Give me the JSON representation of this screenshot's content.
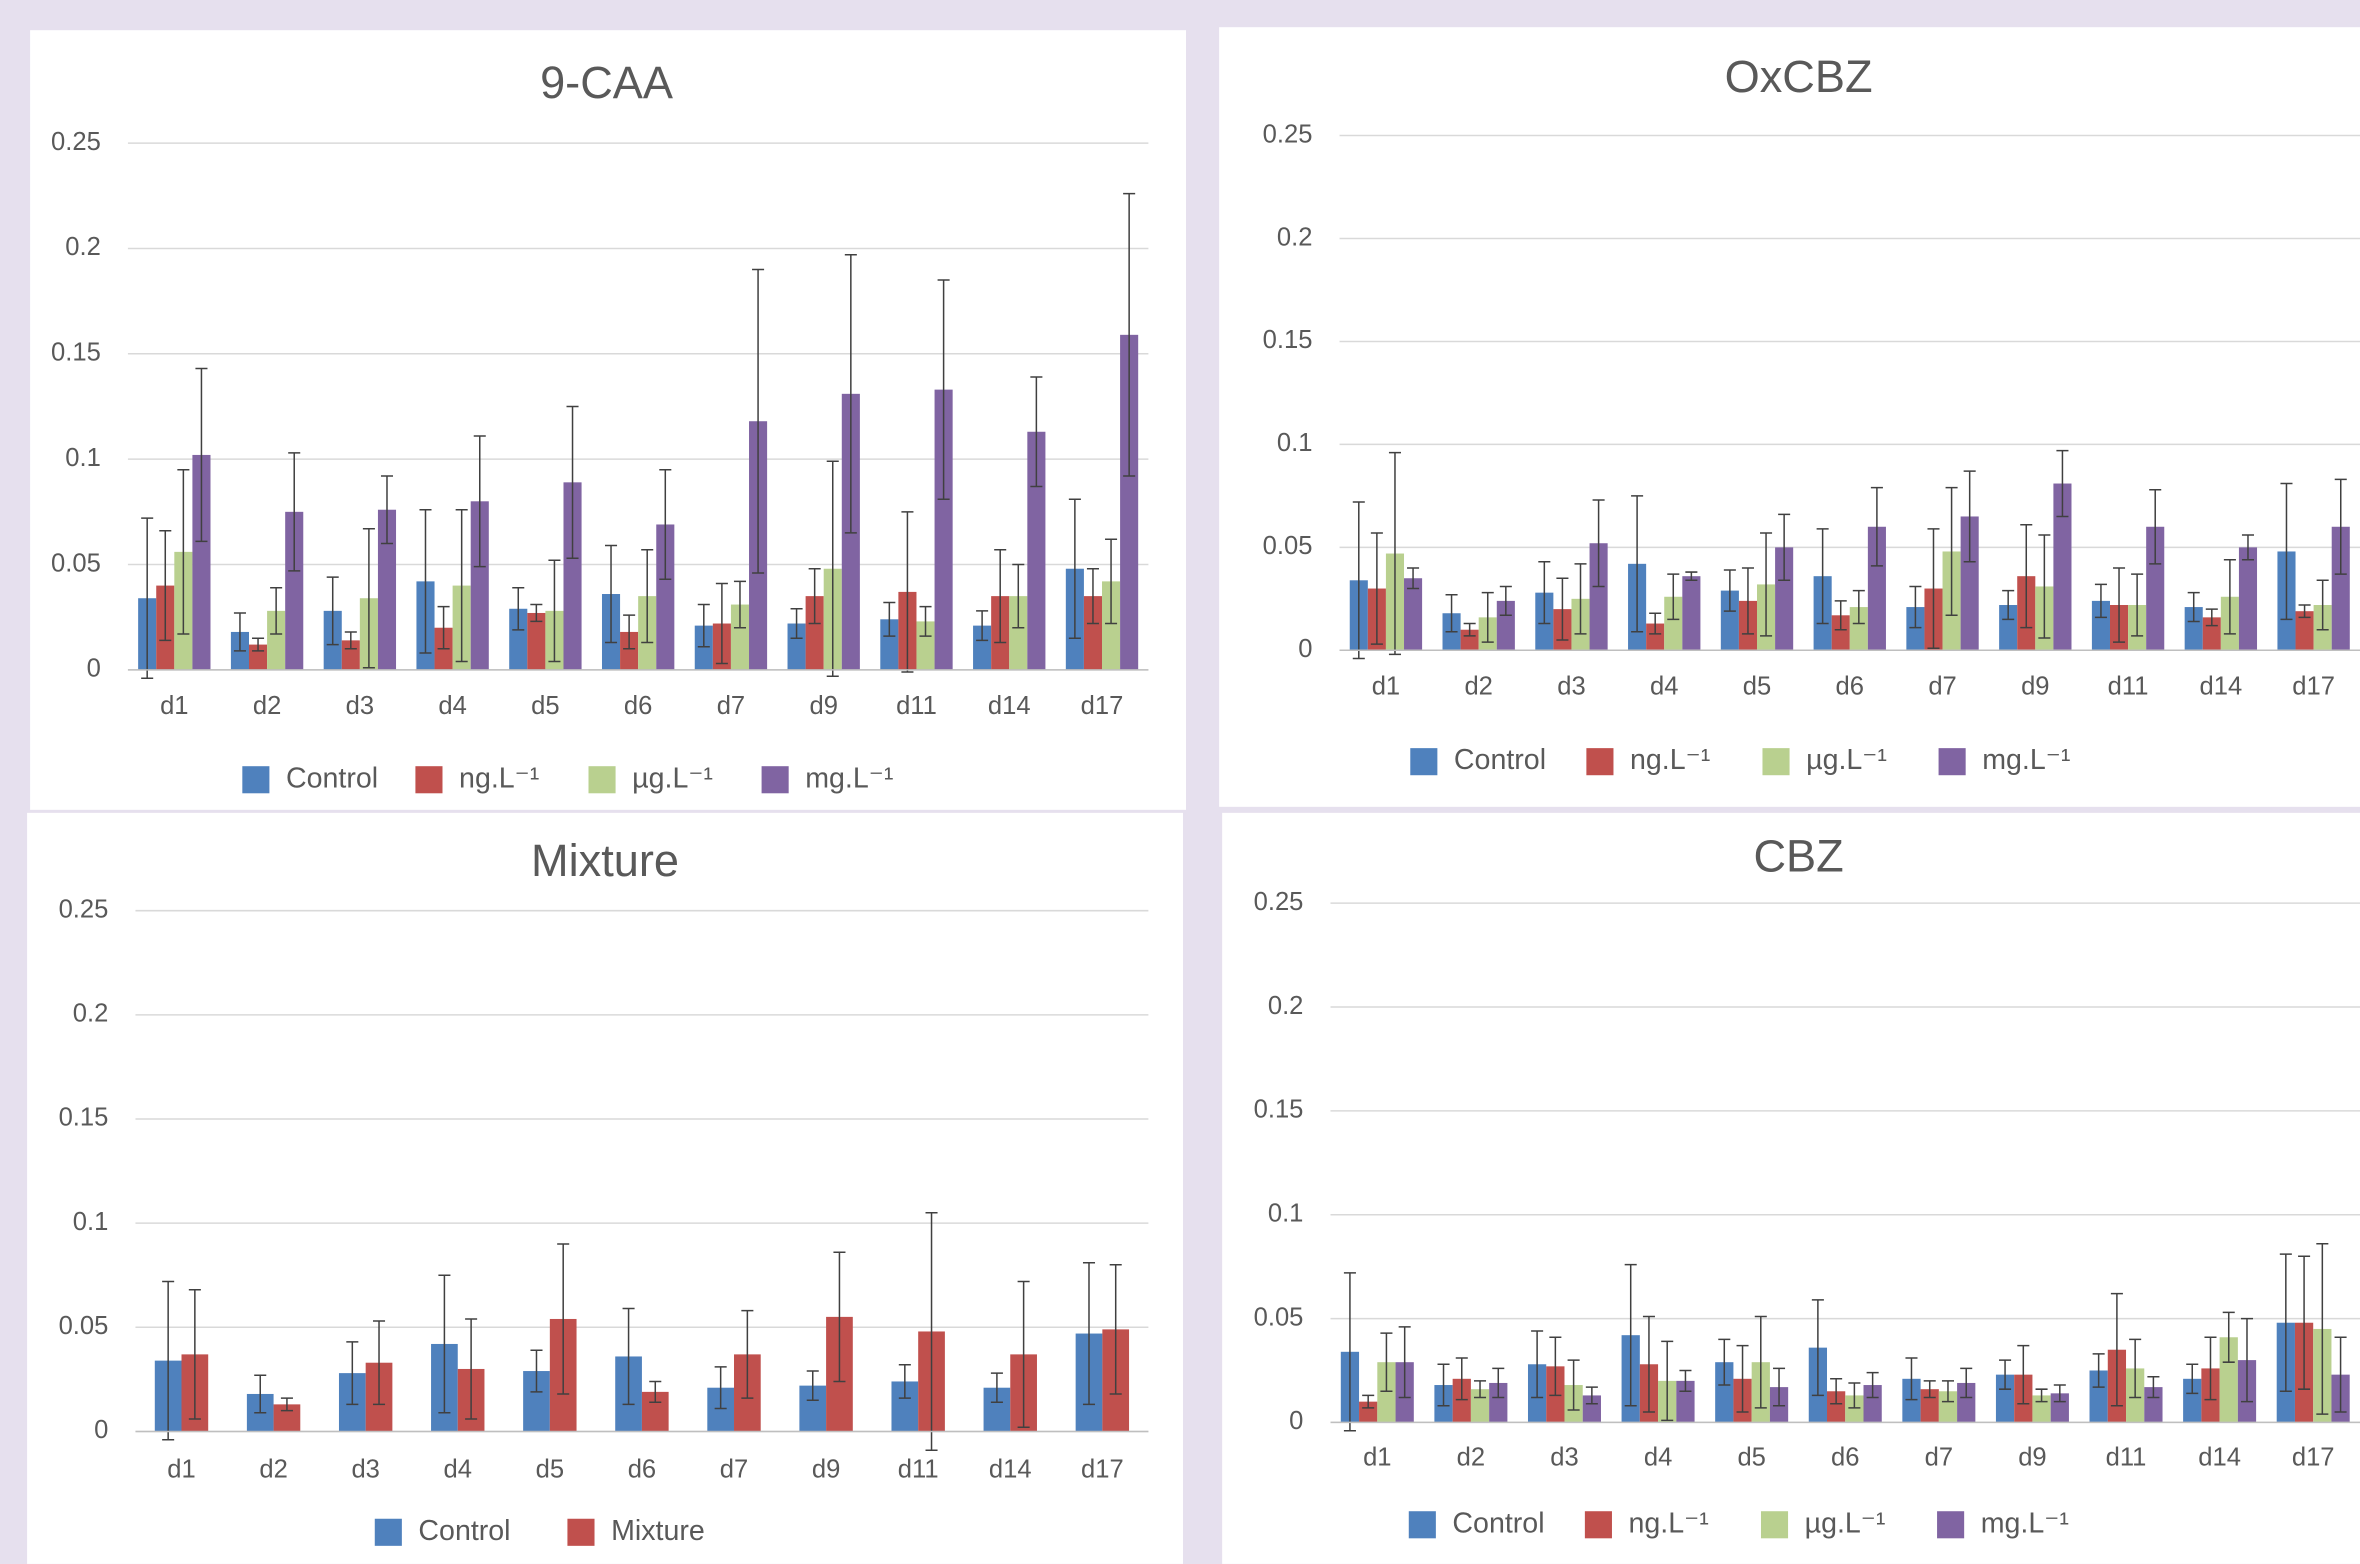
{
  "chart_data": [
    {
      "type": "bar",
      "title": "9-CAA",
      "categories": [
        "d1",
        "d2",
        "d3",
        "d4",
        "d5",
        "d6",
        "d7",
        "d9",
        "d11",
        "d14",
        "d17"
      ],
      "ylim": [
        0,
        0.25
      ],
      "yticks": [
        0,
        0.05,
        0.1,
        0.15,
        0.2,
        0.25
      ],
      "grid": true,
      "series": [
        {
          "name": "Control",
          "color": "#4f81bd",
          "values": [
            0.034,
            0.018,
            0.028,
            0.042,
            0.029,
            0.036,
            0.021,
            0.022,
            0.024,
            0.021,
            0.048
          ],
          "errors": [
            0.038,
            0.009,
            0.016,
            0.034,
            0.01,
            0.023,
            0.01,
            0.007,
            0.008,
            0.007,
            0.033
          ]
        },
        {
          "name": "ng.L⁻¹",
          "color": "#c0504d",
          "values": [
            0.04,
            0.012,
            0.014,
            0.02,
            0.027,
            0.018,
            0.022,
            0.035,
            0.037,
            0.035,
            0.035
          ],
          "errors": [
            0.026,
            0.003,
            0.004,
            0.01,
            0.004,
            0.008,
            0.019,
            0.013,
            0.038,
            0.022,
            0.013
          ]
        },
        {
          "name": "µg.L⁻¹",
          "color": "#b9d08f",
          "values": [
            0.056,
            0.028,
            0.034,
            0.04,
            0.028,
            0.035,
            0.031,
            0.048,
            0.023,
            0.035,
            0.042
          ],
          "errors": [
            0.039,
            0.011,
            0.033,
            0.036,
            0.024,
            0.022,
            0.011,
            0.051,
            0.007,
            0.015,
            0.02
          ]
        },
        {
          "name": "mg.L⁻¹",
          "color": "#8064a2",
          "values": [
            0.102,
            0.075,
            0.076,
            0.08,
            0.089,
            0.069,
            0.118,
            0.131,
            0.133,
            0.113,
            0.159
          ],
          "errors": [
            0.041,
            0.028,
            0.016,
            0.031,
            0.036,
            0.026,
            0.072,
            0.066,
            0.052,
            0.026,
            0.067
          ]
        }
      ]
    },
    {
      "type": "bar",
      "title": "OxCBZ",
      "categories": [
        "d1",
        "d2",
        "d3",
        "d4",
        "d5",
        "d6",
        "d7",
        "d9",
        "d11",
        "d14",
        "d17"
      ],
      "ylim": [
        0,
        0.25
      ],
      "yticks": [
        0,
        0.05,
        0.1,
        0.15,
        0.2,
        0.25
      ],
      "grid": true,
      "series": [
        {
          "name": "Control",
          "color": "#4f81bd",
          "values": [
            0.034,
            0.018,
            0.028,
            0.042,
            0.029,
            0.036,
            0.021,
            0.022,
            0.024,
            0.021,
            0.048
          ],
          "errors": [
            0.038,
            0.009,
            0.015,
            0.033,
            0.01,
            0.023,
            0.01,
            0.007,
            0.008,
            0.007,
            0.033
          ]
        },
        {
          "name": "ng.L⁻¹",
          "color": "#c0504d",
          "values": [
            0.03,
            0.01,
            0.02,
            0.013,
            0.024,
            0.017,
            0.03,
            0.036,
            0.022,
            0.016,
            0.019
          ],
          "errors": [
            0.027,
            0.003,
            0.015,
            0.005,
            0.016,
            0.007,
            0.029,
            0.025,
            0.018,
            0.004,
            0.003
          ]
        },
        {
          "name": "µg.L⁻¹",
          "color": "#b9d08f",
          "values": [
            0.047,
            0.016,
            0.025,
            0.026,
            0.032,
            0.021,
            0.048,
            0.031,
            0.022,
            0.026,
            0.022
          ],
          "errors": [
            0.049,
            0.012,
            0.017,
            0.011,
            0.025,
            0.008,
            0.031,
            0.025,
            0.015,
            0.018,
            0.012
          ]
        },
        {
          "name": "mg.L⁻¹",
          "color": "#8064a2",
          "values": [
            0.035,
            0.024,
            0.052,
            0.036,
            0.05,
            0.06,
            0.065,
            0.081,
            0.06,
            0.05,
            0.06
          ],
          "errors": [
            0.005,
            0.007,
            0.021,
            0.002,
            0.016,
            0.019,
            0.022,
            0.016,
            0.018,
            0.006,
            0.023
          ]
        }
      ]
    },
    {
      "type": "bar",
      "title": "Mixture",
      "categories": [
        "d1",
        "d2",
        "d3",
        "d4",
        "d5",
        "d6",
        "d7",
        "d9",
        "d11",
        "d14",
        "d17"
      ],
      "ylim": [
        0,
        0.25
      ],
      "yticks": [
        0,
        0.05,
        0.1,
        0.15,
        0.2,
        0.25
      ],
      "grid": true,
      "series": [
        {
          "name": "Control",
          "color": "#4f81bd",
          "values": [
            0.034,
            0.018,
            0.028,
            0.042,
            0.029,
            0.036,
            0.021,
            0.022,
            0.024,
            0.021,
            0.047
          ],
          "errors": [
            0.038,
            0.009,
            0.015,
            0.033,
            0.01,
            0.023,
            0.01,
            0.007,
            0.008,
            0.007,
            0.034
          ]
        },
        {
          "name": "Mixture",
          "color": "#c0504d",
          "values": [
            0.037,
            0.013,
            0.033,
            0.03,
            0.054,
            0.019,
            0.037,
            0.055,
            0.048,
            0.037,
            0.049
          ],
          "errors": [
            0.031,
            0.003,
            0.02,
            0.024,
            0.036,
            0.005,
            0.021,
            0.031,
            0.057,
            0.035,
            0.031
          ]
        }
      ]
    },
    {
      "type": "bar",
      "title": "CBZ",
      "categories": [
        "d1",
        "d2",
        "d3",
        "d4",
        "d5",
        "d6",
        "d7",
        "d9",
        "d11",
        "d14",
        "d17"
      ],
      "ylim": [
        0,
        0.25
      ],
      "yticks": [
        0,
        0.05,
        0.1,
        0.15,
        0.2,
        0.25
      ],
      "grid": true,
      "series": [
        {
          "name": "Control",
          "color": "#4f81bd",
          "values": [
            0.034,
            0.018,
            0.028,
            0.042,
            0.029,
            0.036,
            0.021,
            0.023,
            0.025,
            0.021,
            0.048
          ],
          "errors": [
            0.038,
            0.01,
            0.016,
            0.034,
            0.011,
            0.023,
            0.01,
            0.007,
            0.008,
            0.007,
            0.033
          ]
        },
        {
          "name": "ng.L⁻¹",
          "color": "#c0504d",
          "values": [
            0.01,
            0.021,
            0.027,
            0.028,
            0.021,
            0.015,
            0.016,
            0.023,
            0.035,
            0.026,
            0.048
          ],
          "errors": [
            0.003,
            0.01,
            0.014,
            0.023,
            0.016,
            0.006,
            0.004,
            0.014,
            0.027,
            0.015,
            0.032
          ]
        },
        {
          "name": "µg.L⁻¹",
          "color": "#b9d08f",
          "values": [
            0.029,
            0.016,
            0.018,
            0.02,
            0.029,
            0.013,
            0.015,
            0.013,
            0.026,
            0.041,
            0.045
          ],
          "errors": [
            0.014,
            0.004,
            0.012,
            0.019,
            0.022,
            0.006,
            0.005,
            0.003,
            0.014,
            0.012,
            0.041
          ]
        },
        {
          "name": "mg.L⁻¹",
          "color": "#8064a2",
          "values": [
            0.029,
            0.019,
            0.013,
            0.02,
            0.017,
            0.018,
            0.019,
            0.014,
            0.017,
            0.03,
            0.023
          ],
          "errors": [
            0.017,
            0.007,
            0.004,
            0.005,
            0.009,
            0.006,
            0.007,
            0.004,
            0.005,
            0.02,
            0.018
          ]
        }
      ]
    }
  ]
}
